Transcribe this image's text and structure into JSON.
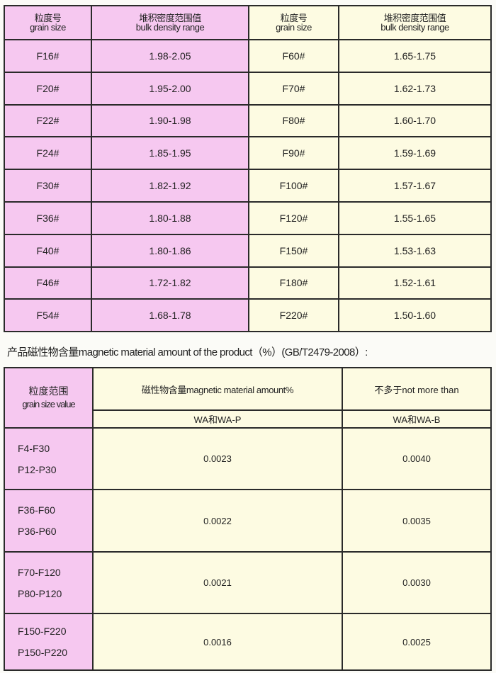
{
  "density_table": {
    "headers": {
      "grain_cn": "粒度号",
      "grain_en": "grain size",
      "density_cn": "堆积密度范围值",
      "density_en": "bulk density range"
    },
    "rows": [
      {
        "left_grain": "F16#",
        "left_range": "1.98-2.05",
        "right_grain": "F60#",
        "right_range": "1.65-1.75"
      },
      {
        "left_grain": "F20#",
        "left_range": "1.95-2.00",
        "right_grain": "F70#",
        "right_range": "1.62-1.73"
      },
      {
        "left_grain": "F22#",
        "left_range": "1.90-1.98",
        "right_grain": "F80#",
        "right_range": "1.60-1.70"
      },
      {
        "left_grain": "F24#",
        "left_range": "1.85-1.95",
        "right_grain": "F90#",
        "right_range": "1.59-1.69"
      },
      {
        "left_grain": "F30#",
        "left_range": "1.82-1.92",
        "right_grain": "F100#",
        "right_range": "1.57-1.67"
      },
      {
        "left_grain": "F36#",
        "left_range": "1.80-1.88",
        "right_grain": "F120#",
        "right_range": "1.55-1.65"
      },
      {
        "left_grain": "F40#",
        "left_range": "1.80-1.86",
        "right_grain": "F150#",
        "right_range": "1.53-1.63"
      },
      {
        "left_grain": "F46#",
        "left_range": "1.72-1.82",
        "right_grain": "F180#",
        "right_range": "1.52-1.61"
      },
      {
        "left_grain": "F54#",
        "left_range": "1.68-1.78",
        "right_grain": "F220#",
        "right_range": "1.50-1.60"
      }
    ]
  },
  "magnetic_title": "产品磁性物含量magnetic material amount of the product（%）(GB/T2479-2008）:",
  "magnetic_table": {
    "grain_header_cn": "粒度范围",
    "grain_header_en": "grain size value",
    "amount_header": "磁性物含量magnetic material amount%",
    "limit_header": "不多于not more than",
    "col1": "WA和WA-P",
    "col2": "WA和WA-B",
    "rows": [
      {
        "f": "F4-F30",
        "p": "P12-P30",
        "v1": "0.0023",
        "v2": "0.0040"
      },
      {
        "f": "F36-F60",
        "p": "P36-P60",
        "v1": "0.0022",
        "v2": "0.0035"
      },
      {
        "f": "F70-F120",
        "p": "P80-P120",
        "v1": "0.0021",
        "v2": "0.0030"
      },
      {
        "f": "F150-F220",
        "p": "P150-P220",
        "v1": "0.0016",
        "v2": "0.0025"
      }
    ]
  },
  "colors": {
    "pink": "#f6c8f0",
    "cream": "#fdfbe2"
  }
}
